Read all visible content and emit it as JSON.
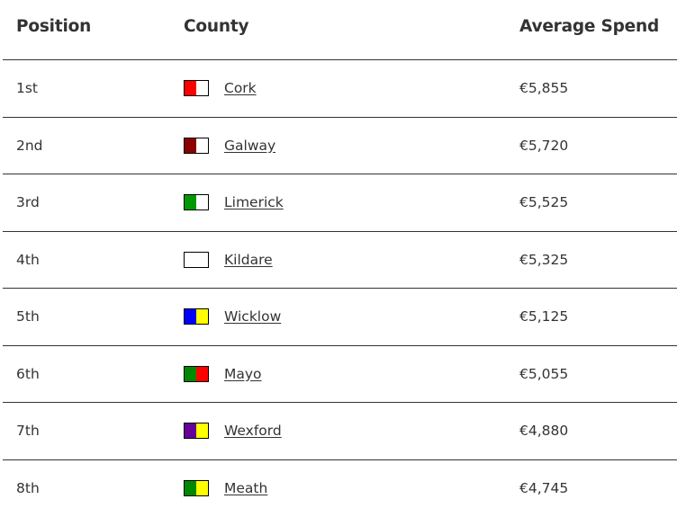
{
  "table": {
    "headers": {
      "position": "Position",
      "county": "County",
      "spend": "Average Spend"
    },
    "rows": [
      {
        "position": "1st",
        "county": "Cork",
        "spend": "€5,855",
        "flag": [
          "#ff0000",
          "#ffffff"
        ]
      },
      {
        "position": "2nd",
        "county": "Galway",
        "spend": "€5,720",
        "flag": [
          "#8b0000",
          "#ffffff"
        ]
      },
      {
        "position": "3rd",
        "county": "Limerick",
        "spend": "€5,525",
        "flag": [
          "#009900",
          "#ffffff"
        ]
      },
      {
        "position": "4th",
        "county": "Kildare",
        "spend": "€5,325",
        "flag": [
          "#ffffff",
          "#ffffff"
        ]
      },
      {
        "position": "5th",
        "county": "Wicklow",
        "spend": "€5,125",
        "flag": [
          "#0000ff",
          "#ffff00"
        ]
      },
      {
        "position": "6th",
        "county": "Mayo",
        "spend": "€5,055",
        "flag": [
          "#008800",
          "#ff0000"
        ]
      },
      {
        "position": "7th",
        "county": "Wexford",
        "spend": "€4,880",
        "flag": [
          "#660099",
          "#ffff00"
        ]
      },
      {
        "position": "8th",
        "county": "Meath",
        "spend": "€4,745",
        "flag": [
          "#008800",
          "#ffff00"
        ]
      }
    ]
  }
}
